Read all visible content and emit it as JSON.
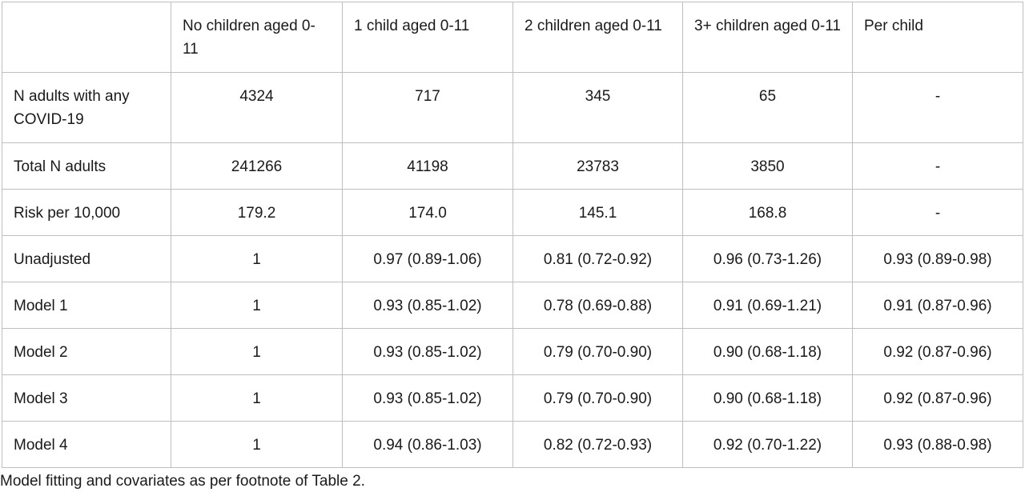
{
  "table": {
    "header": {
      "corner": "",
      "columns": [
        "No children aged 0-11",
        "1 child aged 0-11",
        "2 children aged 0-11",
        "3+ children aged 0-11",
        "Per child"
      ]
    },
    "rows": [
      {
        "label": "N adults with any COVID-19",
        "cells": [
          "4324",
          "717",
          "345",
          "65",
          "-"
        ]
      },
      {
        "label": "Total N adults",
        "cells": [
          "241266",
          "41198",
          "23783",
          "3850",
          "-"
        ]
      },
      {
        "label": "Risk per 10,000",
        "cells": [
          "179.2",
          "174.0",
          "145.1",
          "168.8",
          "-"
        ]
      },
      {
        "label": "Unadjusted",
        "cells": [
          "1",
          "0.97 (0.89-1.06)",
          "0.81 (0.72-0.92)",
          "0.96 (0.73-1.26)",
          "0.93 (0.89-0.98)"
        ]
      },
      {
        "label": "Model 1",
        "cells": [
          "1",
          "0.93 (0.85-1.02)",
          "0.78 (0.69-0.88)",
          "0.91 (0.69-1.21)",
          "0.91 (0.87-0.96)"
        ]
      },
      {
        "label": "Model 2",
        "cells": [
          "1",
          "0.93 (0.85-1.02)",
          "0.79 (0.70-0.90)",
          "0.90 (0.68-1.18)",
          "0.92 (0.87-0.96)"
        ]
      },
      {
        "label": "Model 3",
        "cells": [
          "1",
          "0.93 (0.85-1.02)",
          "0.79 (0.70-0.90)",
          "0.90 (0.68-1.18)",
          "0.92 (0.87-0.96)"
        ]
      },
      {
        "label": "Model 4",
        "cells": [
          "1",
          "0.94 (0.86-1.03)",
          "0.82 (0.72-0.93)",
          "0.92 (0.70-1.22)",
          "0.93 (0.88-0.98)"
        ]
      }
    ]
  },
  "footnote": "Model fitting and covariates as per footnote of Table 2."
}
